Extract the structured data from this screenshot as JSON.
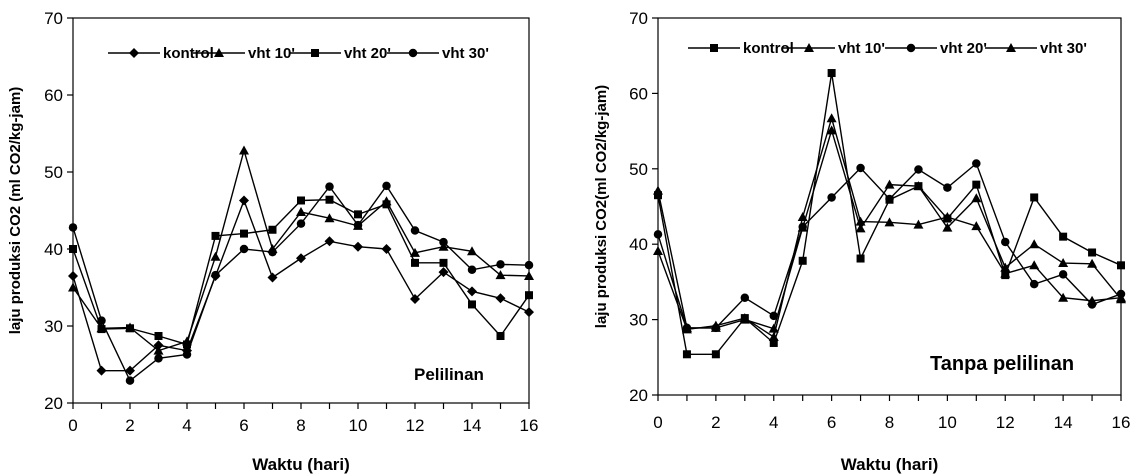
{
  "chart_data": [
    {
      "type": "line",
      "xlabel": "Waktu (hari)",
      "ylabel": "laju produksi CO2 (ml CO2/kg-jam)",
      "annotation": "Pelilinan",
      "xlim": [
        0,
        16
      ],
      "ylim": [
        20,
        70
      ],
      "xticks": [
        "0",
        "2",
        "4",
        "6",
        "8",
        "10",
        "12",
        "14",
        "16"
      ],
      "yticks": [
        "20",
        "30",
        "40",
        "50",
        "60",
        "70"
      ],
      "grid": false,
      "legend_position": "top",
      "x": [
        0,
        1,
        2,
        3,
        4,
        5,
        6,
        7,
        8,
        9,
        10,
        11,
        12,
        13,
        14,
        15,
        16
      ],
      "series": [
        {
          "name": "kontrol",
          "marker": "diamond",
          "values": [
            36.5,
            24.2,
            24.2,
            27.5,
            26.8,
            36.5,
            46.3,
            36.3,
            38.8,
            41.0,
            40.3,
            40.0,
            33.5,
            37.0,
            34.5,
            33.6,
            31.8
          ]
        },
        {
          "name": "vht 10'",
          "marker": "triangle",
          "values": [
            35.0,
            29.7,
            29.8,
            26.8,
            28.0,
            39.0,
            52.8,
            40.0,
            44.8,
            44.0,
            43.0,
            46.2,
            39.5,
            40.3,
            39.7,
            36.6,
            36.5
          ]
        },
        {
          "name": "vht 20'",
          "marker": "square",
          "values": [
            40.0,
            29.6,
            29.7,
            28.7,
            27.6,
            41.7,
            42.0,
            42.5,
            46.3,
            46.4,
            44.5,
            45.8,
            38.2,
            38.2,
            32.8,
            28.7,
            34.0
          ]
        },
        {
          "name": "vht 30'",
          "marker": "circle",
          "values": [
            42.8,
            30.7,
            22.9,
            25.8,
            26.3,
            36.6,
            40.0,
            39.6,
            43.3,
            48.1,
            43.1,
            48.2,
            42.4,
            40.9,
            37.3,
            38.0,
            37.9
          ]
        }
      ]
    },
    {
      "type": "line",
      "xlabel": "Waktu (hari)",
      "ylabel": "laju produksi CO2(ml CO2/kg-jam)",
      "annotation": "Tanpa pelilinan",
      "xlim": [
        0,
        16
      ],
      "ylim": [
        20,
        70
      ],
      "xticks": [
        "0",
        "2",
        "4",
        "6",
        "8",
        "10",
        "12",
        "14",
        "16"
      ],
      "yticks": [
        "20",
        "30",
        "40",
        "50",
        "60",
        "70"
      ],
      "grid": false,
      "legend_position": "top",
      "x": [
        0,
        1,
        2,
        3,
        4,
        5,
        6,
        7,
        8,
        9,
        10,
        11,
        12,
        13,
        14,
        15,
        16
      ],
      "series": [
        {
          "name": "kontrol",
          "marker": "square",
          "values": [
            46.5,
            25.4,
            25.4,
            30.2,
            26.9,
            37.8,
            62.7,
            38.1,
            45.9,
            47.7,
            43.4,
            47.9,
            35.9,
            46.2,
            41.0,
            38.9,
            37.2
          ]
        },
        {
          "name": "vht 10'",
          "marker": "triangle",
          "values": [
            39.1,
            28.7,
            29.2,
            30.2,
            27.7,
            43.6,
            56.7,
            43.0,
            42.9,
            42.6,
            43.6,
            42.4,
            36.1,
            37.2,
            32.9,
            32.5,
            32.9
          ]
        },
        {
          "name": "vht 20'",
          "marker": "circle",
          "values": [
            41.3,
            28.9,
            28.9,
            32.9,
            30.5,
            42.3,
            46.2,
            50.1,
            46.0,
            49.9,
            47.5,
            50.7,
            40.3,
            34.7,
            36.0,
            32.0,
            33.4
          ]
        },
        {
          "name": "vht 30'",
          "marker": "triangle",
          "values": [
            47.1,
            28.9,
            28.9,
            30.0,
            28.8,
            42.2,
            55.1,
            42.1,
            47.9,
            47.7,
            42.2,
            46.1,
            36.9,
            40.0,
            37.5,
            37.4,
            32.7
          ]
        }
      ]
    }
  ]
}
